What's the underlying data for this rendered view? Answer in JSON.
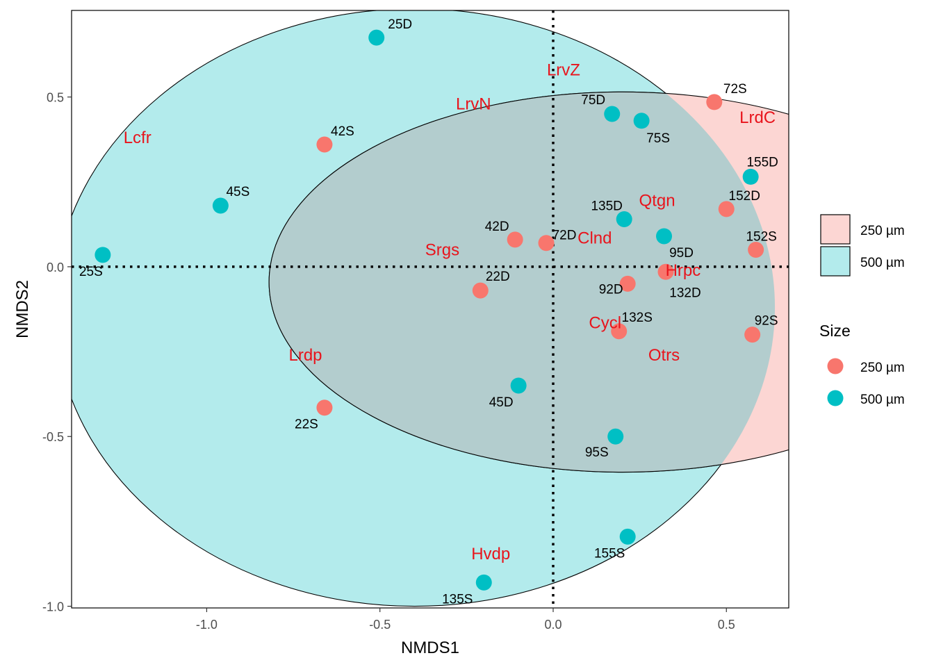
{
  "chart_data": {
    "type": "scatter",
    "title": "",
    "xlabel": "NMDS1",
    "ylabel": "NMDS2",
    "xlim": [
      -1.39,
      0.68
    ],
    "ylim": [
      -1.005,
      0.755
    ],
    "x_ticks": [
      -1.0,
      -0.5,
      0.0,
      0.5
    ],
    "x_tick_labels": [
      "-1.0",
      "-0.5",
      "0.0",
      "0.5"
    ],
    "y_ticks": [
      -1.0,
      -0.5,
      0.0,
      0.5
    ],
    "y_tick_labels": [
      "-1.0",
      "-0.5",
      "0.0",
      "0.5"
    ],
    "grid": false,
    "reference_lines": [
      {
        "axis": "x",
        "value": 0.0,
        "style": "dotted"
      },
      {
        "axis": "y",
        "value": 0.0,
        "style": "dotted"
      }
    ],
    "ellipses": [
      {
        "group": "500 µm",
        "color": "#00BFC4",
        "fill": "#B3EBEC",
        "center": [
          -0.4,
          -0.12
        ],
        "semi_axis_x": 1.04,
        "semi_axis_y": 0.88
      },
      {
        "group": "250 µm",
        "color": "#F8766D",
        "fill": "#FCD6D3",
        "center": [
          0.2,
          -0.045
        ],
        "semi_axis_x": 1.02,
        "semi_axis_y": 0.56
      }
    ],
    "series": [
      {
        "name": "250 µm",
        "color": "#F8766D",
        "points": [
          {
            "label": "72S",
            "x": 0.465,
            "y": 0.485
          },
          {
            "label": "42S",
            "x": -0.66,
            "y": 0.36
          },
          {
            "label": "152D",
            "x": 0.5,
            "y": 0.17
          },
          {
            "label": "42D",
            "x": -0.11,
            "y": 0.08
          },
          {
            "label": "72D",
            "x": -0.02,
            "y": 0.07
          },
          {
            "label": "152S",
            "x": 0.585,
            "y": 0.05
          },
          {
            "label": "132D",
            "x": 0.325,
            "y": -0.015
          },
          {
            "label": "22D",
            "x": -0.21,
            "y": -0.07
          },
          {
            "label": "92D",
            "x": 0.215,
            "y": -0.05
          },
          {
            "label": "132S",
            "x": 0.19,
            "y": -0.19
          },
          {
            "label": "92S",
            "x": 0.575,
            "y": -0.2
          },
          {
            "label": "22S",
            "x": -0.66,
            "y": -0.415
          }
        ]
      },
      {
        "name": "500 µm",
        "color": "#00BFC4",
        "points": [
          {
            "label": "25D",
            "x": -0.51,
            "y": 0.675
          },
          {
            "label": "75D",
            "x": 0.17,
            "y": 0.45
          },
          {
            "label": "75S",
            "x": 0.255,
            "y": 0.43
          },
          {
            "label": "155D",
            "x": 0.57,
            "y": 0.265
          },
          {
            "label": "45S",
            "x": -0.96,
            "y": 0.18
          },
          {
            "label": "135D",
            "x": 0.205,
            "y": 0.14
          },
          {
            "label": "95D",
            "x": 0.32,
            "y": 0.09
          },
          {
            "label": "25S",
            "x": -1.3,
            "y": 0.035
          },
          {
            "label": "45D",
            "x": -0.1,
            "y": -0.35
          },
          {
            "label": "95S",
            "x": 0.18,
            "y": -0.5
          },
          {
            "label": "155S",
            "x": 0.215,
            "y": -0.795
          },
          {
            "label": "135S",
            "x": -0.2,
            "y": -0.93
          }
        ]
      }
    ],
    "species_labels": [
      {
        "label": "LrvZ",
        "x": 0.03,
        "y": 0.58
      },
      {
        "label": "LrvN",
        "x": -0.23,
        "y": 0.48
      },
      {
        "label": "LrdC",
        "x": 0.59,
        "y": 0.44
      },
      {
        "label": "Lcfr",
        "x": -1.2,
        "y": 0.38
      },
      {
        "label": "Qtgn",
        "x": 0.3,
        "y": 0.195
      },
      {
        "label": "Clnd",
        "x": 0.12,
        "y": 0.085
      },
      {
        "label": "Srgs",
        "x": -0.32,
        "y": 0.05
      },
      {
        "label": "Hrpc",
        "x": 0.375,
        "y": -0.01
      },
      {
        "label": "Cycl",
        "x": 0.15,
        "y": -0.165
      },
      {
        "label": "Otrs",
        "x": 0.32,
        "y": -0.26
      },
      {
        "label": "Lrdp",
        "x": -0.715,
        "y": -0.26
      },
      {
        "label": "Hvdp",
        "x": -0.18,
        "y": -0.845
      }
    ],
    "species_label_color": "#E8141C",
    "legends": {
      "fill": {
        "title": "",
        "entries": [
          {
            "label": "250 µm",
            "fill": "#FCD6D3"
          },
          {
            "label": "500 µm",
            "fill": "#B3EBEC"
          }
        ]
      },
      "size": {
        "title": "Size",
        "entries": [
          {
            "label": "250 µm",
            "color": "#F8766D"
          },
          {
            "label": "500 µm",
            "color": "#00BFC4"
          }
        ]
      },
      "placement": "right"
    }
  }
}
